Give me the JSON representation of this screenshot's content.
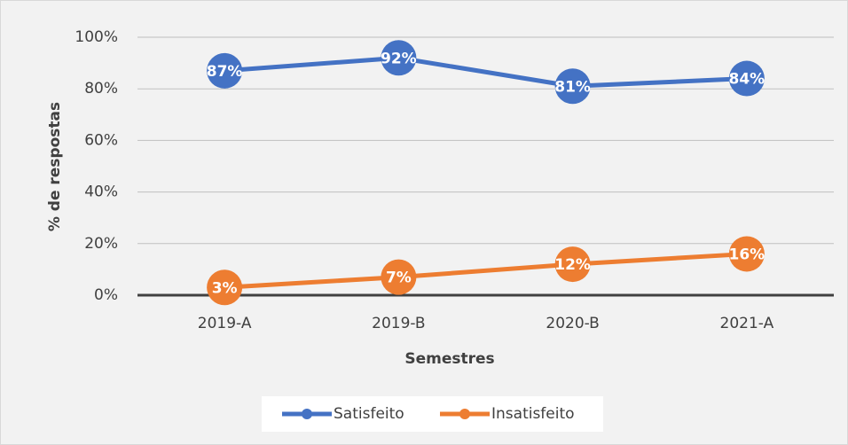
{
  "chart_data": {
    "type": "line",
    "x_label": "Semestres",
    "y_label": "% de respostas",
    "categories": [
      "2019-A",
      "2019-B",
      "2020-B",
      "2021-A"
    ],
    "series": [
      {
        "name": "Satisfeito",
        "color": "#4472c4",
        "values": [
          87,
          92,
          81,
          84
        ],
        "value_labels": [
          "87%",
          "92%",
          "81%",
          "84%"
        ]
      },
      {
        "name": "Insatisfeito",
        "color": "#ed7d31",
        "values": [
          3,
          7,
          12,
          16
        ],
        "value_labels": [
          "3%",
          "7%",
          "12%",
          "16%"
        ]
      }
    ],
    "ylim": [
      0,
      100
    ],
    "yticks": [
      {
        "value": 0,
        "label": "0%"
      },
      {
        "value": 20,
        "label": "20%"
      },
      {
        "value": 40,
        "label": "40%"
      },
      {
        "value": 60,
        "label": "60%"
      },
      {
        "value": 80,
        "label": "80%"
      },
      {
        "value": 100,
        "label": "100%"
      }
    ],
    "grid": true,
    "legend": "bottom"
  }
}
